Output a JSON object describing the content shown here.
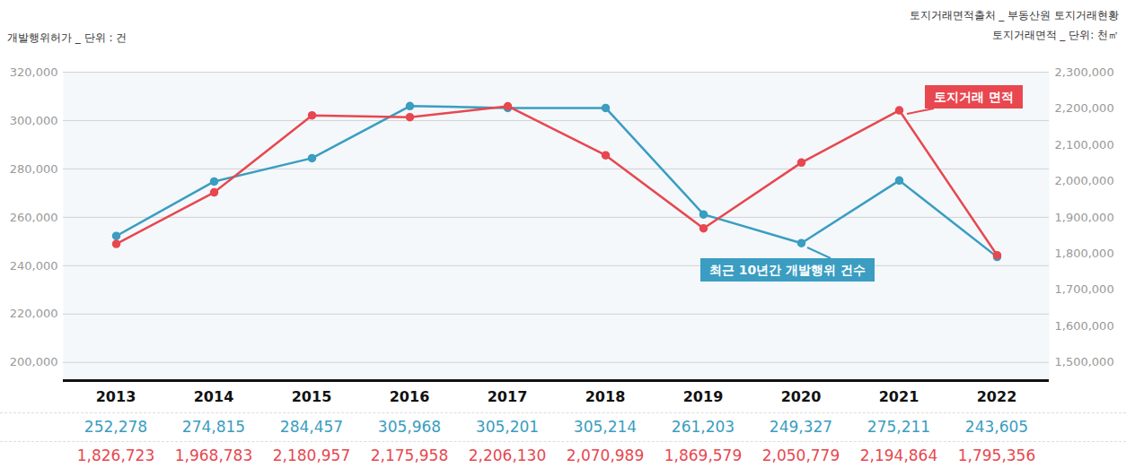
{
  "chart_data": {
    "type": "line",
    "y_label": "개발행위허가 _ 단위 : 건",
    "y2_label": "토지거래면적 _ 단위: 천㎡",
    "source": "토지거래면적출처 _ 부동산원 토지거래현황",
    "categories": [
      "2013",
      "2014",
      "2015",
      "2016",
      "2017",
      "2018",
      "2019",
      "2020",
      "2021",
      "2022"
    ],
    "series": [
      {
        "name": "최근 10년간 개발행위 건수",
        "color": "#3a9dc1",
        "marker": "circle",
        "values": [
          252278,
          274815,
          284457,
          305968,
          305201,
          305214,
          261203,
          249327,
          275211,
          243605
        ],
        "value_labels": [
          "252,278",
          "274,815",
          "284,457",
          "305,968",
          "305,201",
          "305,214",
          "261,203",
          "249,327",
          "275,211",
          "243,605"
        ]
      },
      {
        "name": "토지거래 면적",
        "color": "#e8474f",
        "marker": "circle",
        "axis": "y2",
        "values": [
          1826723,
          1968783,
          2180957,
          2175958,
          2206130,
          2070989,
          1869579,
          2050779,
          2194864,
          1795356
        ],
        "value_labels": [
          "1,826,723",
          "1,968,783",
          "2,180,957",
          "2,175,958",
          "2,206,130",
          "2,070,989",
          "1,869,579",
          "2,050,779",
          "2,194,864",
          "1,795,356"
        ]
      }
    ],
    "ylim": [
      192500,
      320000
    ],
    "yticks": [
      {
        "value": 200000,
        "label": "200,000"
      },
      {
        "value": 220000,
        "label": "220,000"
      },
      {
        "value": 240000,
        "label": "240,000"
      },
      {
        "value": 260000,
        "label": "260,000"
      },
      {
        "value": 280000,
        "label": "280,000"
      },
      {
        "value": 300000,
        "label": "300,000"
      },
      {
        "value": 320000,
        "label": "320,000"
      }
    ],
    "y2lim": [
      1450000,
      2300000
    ],
    "y2ticks": [
      {
        "value": 1500000,
        "label": "1,500,000"
      },
      {
        "value": 1600000,
        "label": "1,600,000"
      },
      {
        "value": 1700000,
        "label": "1,700,000"
      },
      {
        "value": 1800000,
        "label": "1,800,000"
      },
      {
        "value": 1900000,
        "label": "1,900,000"
      },
      {
        "value": 2000000,
        "label": "2,000,000"
      },
      {
        "value": 2100000,
        "label": "2,100,000"
      },
      {
        "value": 2200000,
        "label": "2,200,000"
      },
      {
        "value": 2300000,
        "label": "2,300,000"
      }
    ],
    "grid": true
  }
}
